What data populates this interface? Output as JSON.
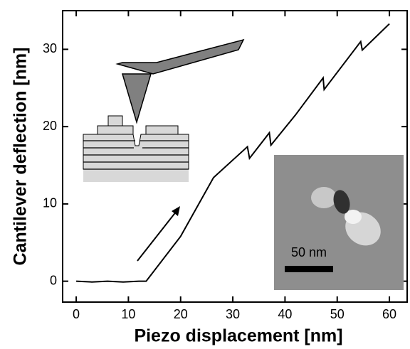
{
  "chart_data": {
    "type": "line",
    "x_label": "Piezo displacement [nm]",
    "y_label": "Cantilever deflection [nm]",
    "x": [
      0,
      3,
      6,
      9,
      12,
      13.4,
      20,
      26.3,
      32.8,
      33.2,
      37,
      37.3,
      42,
      47.3,
      47.5,
      54.5,
      54.8,
      60
    ],
    "series": [
      {
        "color": "#000000",
        "values": [
          0,
          -0.1,
          0,
          -0.1,
          0,
          0,
          5.8,
          13.4,
          17.4,
          15.9,
          19.2,
          17.6,
          21.5,
          26.3,
          24.8,
          31.0,
          29.9,
          33.3
        ]
      }
    ],
    "xlim": [
      -2.6,
      63.4
    ],
    "xticks": [
      0,
      10,
      20,
      30,
      40,
      50,
      60
    ],
    "ylim": [
      -2.7,
      35
    ],
    "yticks": [
      0,
      10,
      20,
      30
    ],
    "annotations": [
      "50 nm"
    ]
  }
}
